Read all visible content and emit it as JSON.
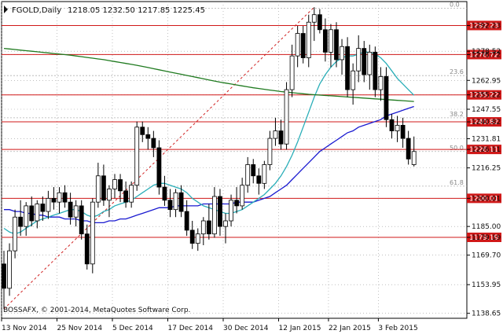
{
  "header": {
    "symbol": "FGOLD,Daily",
    "ohlc": "1218.05 1232.50 1217.85 1225.45"
  },
  "footer": {
    "copyright": "BOSSAFX, © 2001-2014, MetaQuotes Software Corp."
  },
  "chart_data": {
    "type": "candlestick",
    "y_axis": {
      "ticks": [
        1292.23,
        1278.52,
        1276.72,
        1262.95,
        1255.22,
        1247.55,
        1240.82,
        1231.81,
        1226.11,
        1216.25,
        1200.01,
        1185.0,
        1179.19,
        1169.7,
        1153.95,
        1138.65
      ],
      "range": [
        1136,
        1305
      ]
    },
    "x_axis": {
      "labels": [
        "13 Nov 2014",
        "25 Nov 2014",
        "5 Dec 2014",
        "17 Dec 2014",
        "30 Dec 2014",
        "12 Jan 2015",
        "22 Jan 2015",
        "3 Feb 2015"
      ]
    },
    "horizontal_levels": [
      {
        "value": 1292.23,
        "label": "1292.23"
      },
      {
        "value": 1276.72,
        "label": "1276.72"
      },
      {
        "value": 1255.22,
        "label": "1255.22"
      },
      {
        "value": 1240.82,
        "label": "1240.82"
      },
      {
        "value": 1226.11,
        "label": "1226.11"
      },
      {
        "value": 1200.01,
        "label": "1200.01"
      },
      {
        "value": 1179.19,
        "label": "1179.19"
      }
    ],
    "fibonacci": [
      {
        "label": "0.0",
        "value": 1301.5
      },
      {
        "label": "23.6",
        "value": 1265.5
      },
      {
        "label": "38.2",
        "value": 1243.0
      },
      {
        "label": "50.0",
        "value": 1225.0
      },
      {
        "label": "61.8",
        "value": 1206.5
      }
    ],
    "candles": [
      [
        1165,
        1172,
        1141,
        1152
      ],
      [
        1152,
        1176,
        1148,
        1172
      ],
      [
        1172,
        1194,
        1168,
        1190
      ],
      [
        1190,
        1199,
        1180,
        1185
      ],
      [
        1185,
        1198,
        1180,
        1196
      ],
      [
        1196,
        1201,
        1185,
        1188
      ],
      [
        1188,
        1199,
        1184,
        1197
      ],
      [
        1197,
        1201,
        1188,
        1193
      ],
      [
        1193,
        1204,
        1189,
        1200
      ],
      [
        1200,
        1206,
        1194,
        1198
      ],
      [
        1198,
        1206,
        1192,
        1203
      ],
      [
        1203,
        1207,
        1195,
        1198
      ],
      [
        1198,
        1203,
        1186,
        1190
      ],
      [
        1190,
        1199,
        1185,
        1196
      ],
      [
        1196,
        1199,
        1178,
        1181
      ],
      [
        1181,
        1186,
        1162,
        1165
      ],
      [
        1165,
        1200,
        1160,
        1198
      ],
      [
        1198,
        1219,
        1195,
        1212
      ],
      [
        1212,
        1218,
        1196,
        1199
      ],
      [
        1199,
        1207,
        1190,
        1205
      ],
      [
        1205,
        1213,
        1200,
        1210
      ],
      [
        1210,
        1213,
        1198,
        1204
      ],
      [
        1204,
        1209,
        1195,
        1198
      ],
      [
        1198,
        1209,
        1195,
        1207
      ],
      [
        1207,
        1241,
        1204,
        1238
      ],
      [
        1238,
        1241,
        1230,
        1234
      ],
      [
        1234,
        1238,
        1226,
        1232
      ],
      [
        1232,
        1236,
        1222,
        1227
      ],
      [
        1227,
        1231,
        1202,
        1206
      ],
      [
        1206,
        1212,
        1196,
        1199
      ],
      [
        1199,
        1205,
        1190,
        1194
      ],
      [
        1194,
        1205,
        1190,
        1203
      ],
      [
        1203,
        1207,
        1190,
        1193
      ],
      [
        1193,
        1199,
        1180,
        1183
      ],
      [
        1183,
        1188,
        1173,
        1176
      ],
      [
        1176,
        1184,
        1172,
        1181
      ],
      [
        1181,
        1190,
        1175,
        1188
      ],
      [
        1188,
        1197,
        1178,
        1181
      ],
      [
        1181,
        1206,
        1179,
        1201
      ],
      [
        1201,
        1205,
        1180,
        1185
      ],
      [
        1185,
        1192,
        1176,
        1188
      ],
      [
        1188,
        1202,
        1185,
        1199
      ],
      [
        1199,
        1206,
        1192,
        1196
      ],
      [
        1196,
        1211,
        1194,
        1207
      ],
      [
        1207,
        1222,
        1203,
        1218
      ],
      [
        1218,
        1221,
        1208,
        1212
      ],
      [
        1212,
        1216,
        1202,
        1208
      ],
      [
        1208,
        1220,
        1205,
        1218
      ],
      [
        1218,
        1236,
        1215,
        1232
      ],
      [
        1232,
        1243,
        1228,
        1236
      ],
      [
        1236,
        1242,
        1226,
        1229
      ],
      [
        1229,
        1262,
        1226,
        1258
      ],
      [
        1258,
        1282,
        1254,
        1276
      ],
      [
        1276,
        1292,
        1270,
        1288
      ],
      [
        1288,
        1292,
        1272,
        1275
      ],
      [
        1275,
        1298,
        1270,
        1294
      ],
      [
        1294,
        1302,
        1284,
        1298
      ],
      [
        1298,
        1301,
        1288,
        1290
      ],
      [
        1290,
        1296,
        1273,
        1278
      ],
      [
        1278,
        1293,
        1270,
        1290
      ],
      [
        1290,
        1294,
        1270,
        1274
      ],
      [
        1274,
        1285,
        1266,
        1281
      ],
      [
        1281,
        1286,
        1254,
        1258
      ],
      [
        1258,
        1272,
        1250,
        1268
      ],
      [
        1268,
        1287,
        1262,
        1280
      ],
      [
        1280,
        1284,
        1262,
        1266
      ],
      [
        1266,
        1282,
        1258,
        1278
      ],
      [
        1278,
        1281,
        1254,
        1258
      ],
      [
        1258,
        1270,
        1252,
        1265
      ],
      [
        1265,
        1270,
        1238,
        1242
      ],
      [
        1242,
        1245,
        1232,
        1236
      ],
      [
        1236,
        1244,
        1230,
        1239
      ],
      [
        1239,
        1243,
        1227,
        1232
      ],
      [
        1232,
        1236,
        1218,
        1221
      ],
      [
        1218,
        1233,
        1217,
        1225
      ]
    ],
    "moving_averages": [
      {
        "color": "#1a1ad0",
        "values": [
          1194,
          1194,
          1193,
          1193,
          1192,
          1192,
          1191,
          1191,
          1190,
          1190,
          1190,
          1189,
          1189,
          1189,
          1188,
          1188,
          1187,
          1187,
          1187,
          1188,
          1188,
          1189,
          1189,
          1190,
          1191,
          1192,
          1193,
          1194,
          1195,
          1195,
          1195,
          1196,
          1196,
          1196,
          1196,
          1196,
          1197,
          1197,
          1197,
          1197,
          1197,
          1197,
          1198,
          1198,
          1198,
          1198,
          1199,
          1200,
          1201,
          1203,
          1205,
          1207,
          1210,
          1213,
          1216,
          1219,
          1222,
          1225,
          1227,
          1229,
          1231,
          1233,
          1235,
          1236,
          1238,
          1239,
          1240,
          1241,
          1242,
          1244,
          1245,
          1246,
          1247,
          1248,
          1249
        ]
      },
      {
        "color": "#2aaeb8",
        "values": [
          1184,
          1182,
          1181,
          1182,
          1184,
          1186,
          1188,
          1189,
          1190,
          1191,
          1192,
          1193,
          1194,
          1194,
          1193,
          1191,
          1190,
          1191,
          1193,
          1194,
          1196,
          1197,
          1198,
          1199,
          1201,
          1203,
          1205,
          1207,
          1208,
          1208,
          1207,
          1206,
          1205,
          1203,
          1200,
          1198,
          1196,
          1195,
          1194,
          1193,
          1192,
          1192,
          1193,
          1194,
          1196,
          1198,
          1200,
          1202,
          1205,
          1208,
          1212,
          1217,
          1223,
          1230,
          1238,
          1246,
          1254,
          1261,
          1266,
          1270,
          1273,
          1275,
          1276,
          1276,
          1277,
          1278,
          1278,
          1277,
          1275,
          1272,
          1268,
          1264,
          1261,
          1258,
          1255
        ]
      },
      {
        "color": "#1f7a1f",
        "values": [
          1280,
          1279.7,
          1279.4,
          1279.1,
          1278.8,
          1278.5,
          1278.2,
          1277.9,
          1277.6,
          1277.3,
          1277,
          1276.7,
          1276.4,
          1276,
          1275.6,
          1275.2,
          1274.8,
          1274.4,
          1274,
          1273.5,
          1273,
          1272.5,
          1272,
          1271.5,
          1271,
          1270.4,
          1269.8,
          1269.2,
          1268.6,
          1268,
          1267.4,
          1266.8,
          1266.2,
          1265.6,
          1265,
          1264.4,
          1263.8,
          1263.2,
          1262.6,
          1262,
          1261.5,
          1261,
          1260.5,
          1260,
          1259.5,
          1259,
          1258.6,
          1258.2,
          1257.8,
          1257.4,
          1257,
          1256.7,
          1256.4,
          1256.1,
          1255.8,
          1255.5,
          1255.3,
          1255.1,
          1254.9,
          1254.7,
          1254.5,
          1254.3,
          1254.1,
          1253.9,
          1253.7,
          1253.5,
          1253.3,
          1253.1,
          1252.9,
          1252.7,
          1252.5,
          1252.3,
          1252.1,
          1251.9,
          1251.7
        ]
      }
    ],
    "fib_trendline": {
      "from_index": 0,
      "from_value": 1141,
      "to_index": 56,
      "to_value": 1302
    }
  }
}
